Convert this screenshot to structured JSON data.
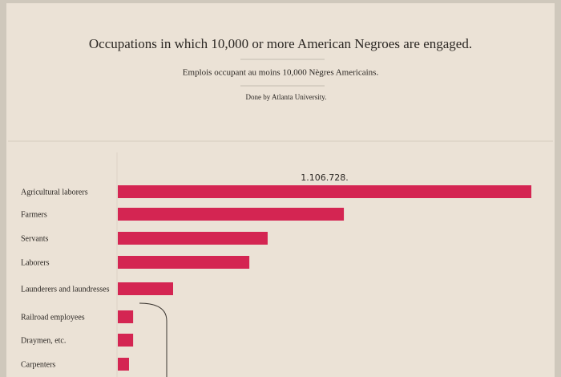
{
  "chart_data": {
    "type": "bar",
    "title": "Occupations in which 10,000 or more American Negroes are engaged.",
    "subtitle": "Emplois occupant au moins 10,000 Nègres Americains.",
    "credit": "Done by Atlanta University.",
    "categories": [
      "Agricultural laborers",
      "Farmers",
      "Servants",
      "Laborers",
      "Launderers and laundresses",
      "Railroad employees",
      "Draymen, etc.",
      "Carpenters"
    ],
    "values": [
      1106728,
      605000,
      401000,
      352000,
      148000,
      41000,
      41000,
      30000
    ],
    "value_labels": [
      "1.106.728.",
      null,
      null,
      null,
      null,
      null,
      null,
      null
    ],
    "color": "#d42552"
  }
}
